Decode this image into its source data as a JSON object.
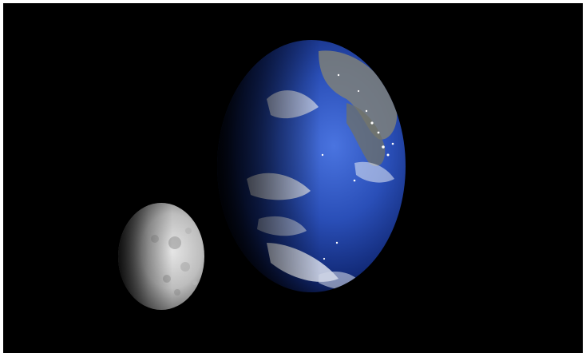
{
  "image": {
    "background": "#000000",
    "frame_color": "#ffffff"
  },
  "earth": {
    "ocean_color": "#2a4fb8",
    "deep_ocean_color": "#0b1f63",
    "cloud_color": "#e8ecf5",
    "land_color": "#8a8c8a"
  },
  "moon": {
    "surface_color": "#cfcfcf",
    "shadow_color": "#3a3a3a"
  }
}
